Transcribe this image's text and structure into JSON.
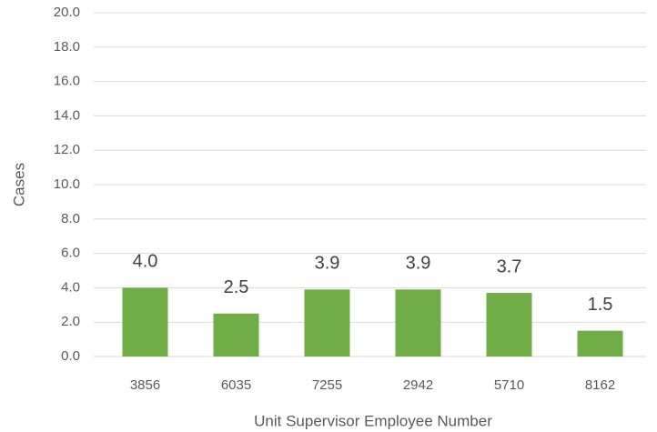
{
  "chart_data": {
    "type": "bar",
    "x_label": "Unit Supervisor Employee Number",
    "y_label": "Cases",
    "categories": [
      "3856",
      "6035",
      "7255",
      "2942",
      "5710",
      "8162"
    ],
    "values": [
      4.0,
      2.5,
      3.9,
      3.9,
      3.7,
      1.5
    ],
    "value_labels": [
      "4.0",
      "2.5",
      "3.9",
      "3.9",
      "3.7",
      "1.5"
    ],
    "color": "#70ad47",
    "ylim": [
      0,
      20
    ],
    "yticks": [
      {
        "value": 0,
        "label": "0.0"
      },
      {
        "value": 2,
        "label": "2.0"
      },
      {
        "value": 4,
        "label": "4.0"
      },
      {
        "value": 6,
        "label": "6.0"
      },
      {
        "value": 8,
        "label": "8.0"
      },
      {
        "value": 10,
        "label": "10.0"
      },
      {
        "value": 12,
        "label": "12.0"
      },
      {
        "value": 14,
        "label": "14.0"
      },
      {
        "value": 16,
        "label": "16.0"
      },
      {
        "value": 18,
        "label": "18.0"
      },
      {
        "value": 20,
        "label": "20.0"
      }
    ],
    "grid": true
  }
}
